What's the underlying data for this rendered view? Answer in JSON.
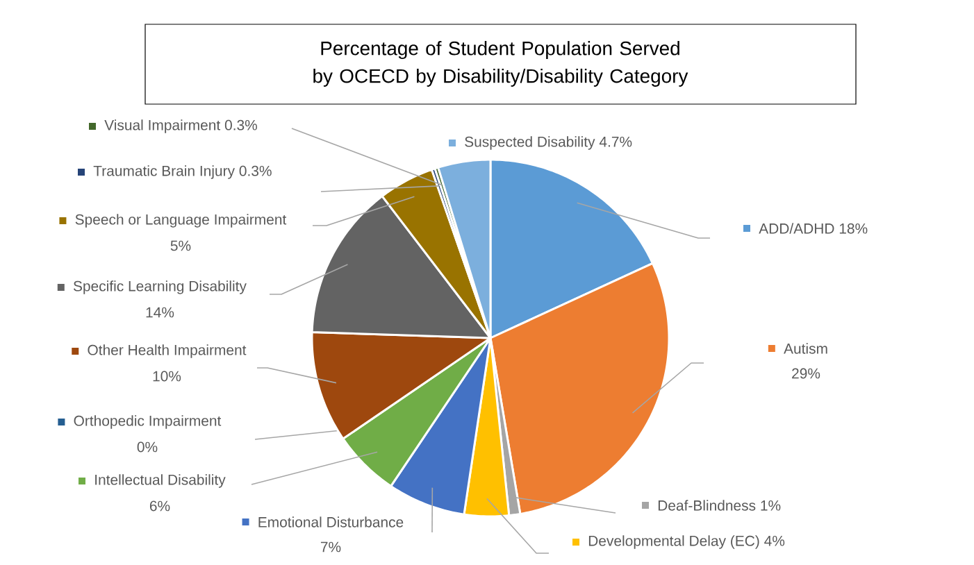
{
  "chart_data": {
    "type": "pie",
    "title": "Percentage of Student Population Served by OCECD by Disability/Disability Category",
    "categories": [
      "ADD/ADHD",
      "Autism",
      "Deaf-Blindness",
      "Developmental Delay (EC)",
      "Emotional Disturbance",
      "Intellectual Disability",
      "Orthopedic Impairment",
      "Other Health Impairment",
      "Specific Learning Disability",
      "Speech or Language Impairment",
      "Traumatic Brain Injury",
      "Visual Impairment",
      "Suspected Disability"
    ],
    "values": [
      18,
      29,
      1,
      4,
      7,
      6,
      0,
      10,
      14,
      5,
      0.3,
      0.3,
      4.7
    ],
    "value_labels": [
      "18%",
      "29%",
      "1%",
      "4%",
      "7%",
      "6%",
      "0%",
      "10%",
      "14%",
      "5%",
      "0.3%",
      "0.3%",
      "4.7%"
    ],
    "legend": "left",
    "colors": [
      "#5b9bd5",
      "#ed7d31",
      "#a5a5a5",
      "#ffc000",
      "#4472c4",
      "#70ad47",
      "#255e91",
      "#9e480e",
      "#636363",
      "#997300",
      "#264478",
      "#43682b",
      "#7cafdd"
    ]
  }
}
